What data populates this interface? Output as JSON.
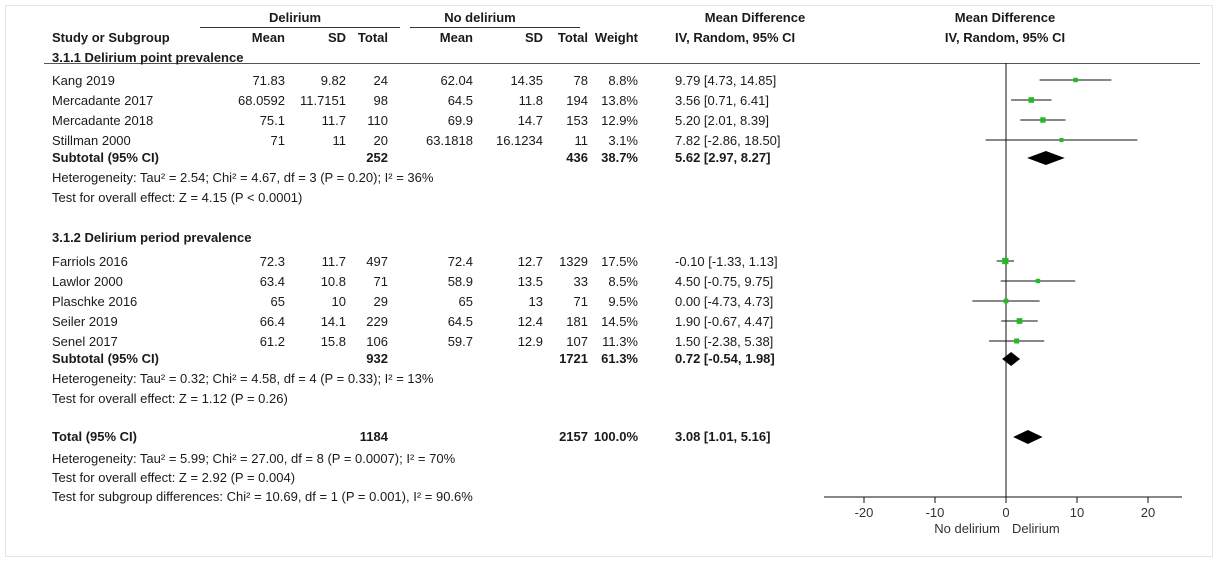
{
  "header": {
    "group1": "Delirium",
    "group2": "No delirium",
    "effect_col": "Mean Difference",
    "plot_title": "Mean Difference",
    "cols": {
      "study": "Study or Subgroup",
      "mean1": "Mean",
      "sd1": "SD",
      "total1": "Total",
      "mean2": "Mean",
      "sd2": "SD",
      "total2": "Total",
      "weight": "Weight",
      "ci": "IV, Random, 95% CI",
      "plot_ci": "IV, Random, 95% CI"
    }
  },
  "subgroups": [
    {
      "title": "3.1.1 Delirium point prevalence",
      "studies": [
        {
          "name": "Kang 2019",
          "mean1": "71.83",
          "sd1": "9.82",
          "n1": "24",
          "mean2": "62.04",
          "sd2": "14.35",
          "n2": "78",
          "weight": "8.8%",
          "ci_text": "9.79 [4.73, 14.85]"
        },
        {
          "name": "Mercadante 2017",
          "mean1": "68.0592",
          "sd1": "11.7151",
          "n1": "98",
          "mean2": "64.5",
          "sd2": "11.8",
          "n2": "194",
          "weight": "13.8%",
          "ci_text": "3.56 [0.71, 6.41]"
        },
        {
          "name": "Mercadante 2018",
          "mean1": "75.1",
          "sd1": "11.7",
          "n1": "110",
          "mean2": "69.9",
          "sd2": "14.7",
          "n2": "153",
          "weight": "12.9%",
          "ci_text": "5.20 [2.01, 8.39]"
        },
        {
          "name": "Stillman 2000",
          "mean1": "71",
          "sd1": "11",
          "n1": "20",
          "mean2": "63.1818",
          "sd2": "16.1234",
          "n2": "11",
          "weight": "3.1%",
          "ci_text": "7.82 [-2.86, 18.50]"
        }
      ],
      "subtotal": {
        "label": "Subtotal (95% CI)",
        "n1": "252",
        "n2": "436",
        "weight": "38.7%",
        "ci_text": "5.62 [2.97, 8.27]"
      },
      "heterogeneity": "Heterogeneity: Tau² = 2.54; Chi² = 4.67, df = 3 (P = 0.20); I² = 36%",
      "overall_test": "Test for overall effect: Z = 4.15 (P < 0.0001)"
    },
    {
      "title": "3.1.2 Delirium period prevalence",
      "studies": [
        {
          "name": "Farriols 2016",
          "mean1": "72.3",
          "sd1": "11.7",
          "n1": "497",
          "mean2": "72.4",
          "sd2": "12.7",
          "n2": "1329",
          "weight": "17.5%",
          "ci_text": "-0.10 [-1.33, 1.13]"
        },
        {
          "name": "Lawlor 2000",
          "mean1": "63.4",
          "sd1": "10.8",
          "n1": "71",
          "mean2": "58.9",
          "sd2": "13.5",
          "n2": "33",
          "weight": "8.5%",
          "ci_text": "4.50 [-0.75, 9.75]"
        },
        {
          "name": "Plaschke 2016",
          "mean1": "65",
          "sd1": "10",
          "n1": "29",
          "mean2": "65",
          "sd2": "13",
          "n2": "71",
          "weight": "9.5%",
          "ci_text": "0.00 [-4.73, 4.73]"
        },
        {
          "name": "Seiler 2019",
          "mean1": "66.4",
          "sd1": "14.1",
          "n1": "229",
          "mean2": "64.5",
          "sd2": "12.4",
          "n2": "181",
          "weight": "14.5%",
          "ci_text": "1.90 [-0.67, 4.47]"
        },
        {
          "name": "Senel 2017",
          "mean1": "61.2",
          "sd1": "15.8",
          "n1": "106",
          "mean2": "59.7",
          "sd2": "12.9",
          "n2": "107",
          "weight": "11.3%",
          "ci_text": "1.50 [-2.38, 5.38]"
        }
      ],
      "subtotal": {
        "label": "Subtotal (95% CI)",
        "n1": "932",
        "n2": "1721",
        "weight": "61.3%",
        "ci_text": "0.72 [-0.54, 1.98]"
      },
      "heterogeneity": "Heterogeneity: Tau² = 0.32; Chi² = 4.58, df = 4 (P = 0.33); I² = 13%",
      "overall_test": "Test for overall effect: Z = 1.12 (P = 0.26)"
    }
  ],
  "total": {
    "label": "Total (95% CI)",
    "n1": "1184",
    "n2": "2157",
    "weight": "100.0%",
    "ci_text": "3.08 [1.01, 5.16]",
    "heterogeneity": "Heterogeneity: Tau² = 5.99; Chi² = 27.00, df = 8 (P = 0.0007); I² = 70%",
    "overall_test": "Test for overall effect: Z = 2.92 (P = 0.004)",
    "subgroup_test": "Test for subgroup differences: Chi² = 10.69, df = 1 (P = 0.001), I² = 90.6%"
  },
  "chart_data": {
    "type": "forest",
    "xlim": [
      -20,
      20
    ],
    "ticks": [
      -20,
      -10,
      0,
      10,
      20
    ],
    "tick_labels": [
      "-20",
      "-10",
      "0",
      "10",
      "20"
    ],
    "xlabel_left": "No delirium",
    "xlabel_right": "Delirium",
    "study_color": "#22bb22",
    "diamond_color": "#000000",
    "studies": [
      {
        "name": "Kang 2019",
        "md": 9.79,
        "lo": 4.73,
        "hi": 14.85,
        "weight": 8.8
      },
      {
        "name": "Mercadante 2017",
        "md": 3.56,
        "lo": 0.71,
        "hi": 6.41,
        "weight": 13.8
      },
      {
        "name": "Mercadante 2018",
        "md": 5.2,
        "lo": 2.01,
        "hi": 8.39,
        "weight": 12.9
      },
      {
        "name": "Stillman 2000",
        "md": 7.82,
        "lo": -2.86,
        "hi": 18.5,
        "weight": 3.1
      },
      {
        "name": "Farriols 2016",
        "md": -0.1,
        "lo": -1.33,
        "hi": 1.13,
        "weight": 17.5
      },
      {
        "name": "Lawlor 2000",
        "md": 4.5,
        "lo": -0.75,
        "hi": 9.75,
        "weight": 8.5
      },
      {
        "name": "Plaschke 2016",
        "md": 0.0,
        "lo": -4.73,
        "hi": 4.73,
        "weight": 9.5
      },
      {
        "name": "Seiler 2019",
        "md": 1.9,
        "lo": -0.67,
        "hi": 4.47,
        "weight": 14.5
      },
      {
        "name": "Senel 2017",
        "md": 1.5,
        "lo": -2.38,
        "hi": 5.38,
        "weight": 11.3
      }
    ],
    "diamonds": [
      {
        "name": "Subtotal 3.1.1",
        "md": 5.62,
        "lo": 2.97,
        "hi": 8.27
      },
      {
        "name": "Subtotal 3.1.2",
        "md": 0.72,
        "lo": -0.54,
        "hi": 1.98
      },
      {
        "name": "Total",
        "md": 3.08,
        "lo": 1.01,
        "hi": 5.16
      }
    ]
  }
}
